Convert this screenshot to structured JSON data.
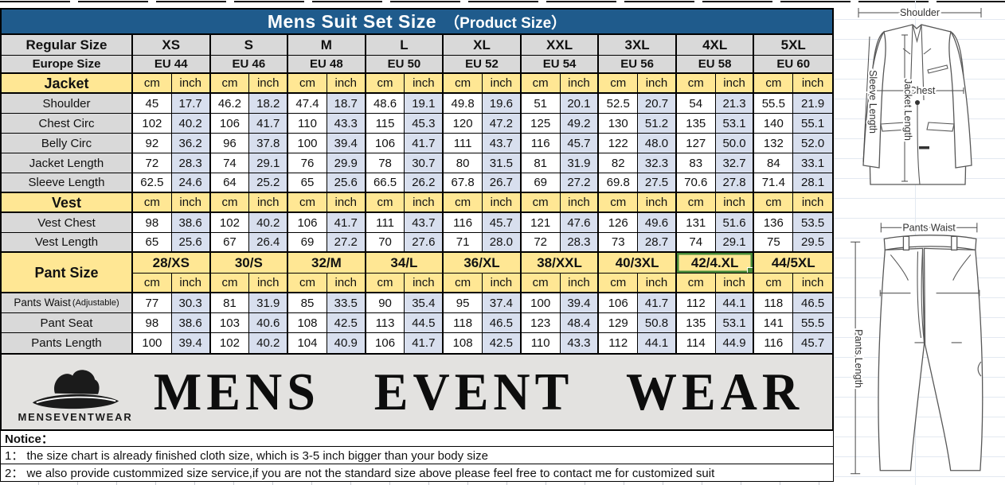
{
  "title": {
    "main": "Mens Suit Set Size",
    "sub": "（Product Size）"
  },
  "table": {
    "regular_size_label": "Regular Size",
    "europe_size_label": "Europe Size",
    "unit_cm": "cm",
    "unit_inch": "inch",
    "sizes": [
      "XS",
      "S",
      "M",
      "L",
      "XL",
      "XXL",
      "3XL",
      "4XL",
      "5XL"
    ],
    "europe_sizes": [
      "EU 44",
      "EU 46",
      "EU 48",
      "EU 50",
      "EU 52",
      "EU 54",
      "EU 56",
      "EU 58",
      "EU 60"
    ],
    "jacket": {
      "label": "Jacket",
      "rows": [
        {
          "label": "Shoulder",
          "cm": [
            "45",
            "46.2",
            "47.4",
            "48.6",
            "49.8",
            "51",
            "52.5",
            "54",
            "55.5"
          ],
          "inch": [
            "17.7",
            "18.2",
            "18.7",
            "19.1",
            "19.6",
            "20.1",
            "20.7",
            "21.3",
            "21.9"
          ]
        },
        {
          "label": "Chest Circ",
          "cm": [
            "102",
            "106",
            "110",
            "115",
            "120",
            "125",
            "130",
            "135",
            "140"
          ],
          "inch": [
            "40.2",
            "41.7",
            "43.3",
            "45.3",
            "47.2",
            "49.2",
            "51.2",
            "53.1",
            "55.1"
          ]
        },
        {
          "label": "Belly Circ",
          "cm": [
            "92",
            "96",
            "100",
            "106",
            "111",
            "116",
            "122",
            "127",
            "132"
          ],
          "inch": [
            "36.2",
            "37.8",
            "39.4",
            "41.7",
            "43.7",
            "45.7",
            "48.0",
            "50.0",
            "52.0"
          ]
        },
        {
          "label": "Jacket Length",
          "cm": [
            "72",
            "74",
            "76",
            "78",
            "80",
            "81",
            "82",
            "83",
            "84"
          ],
          "inch": [
            "28.3",
            "29.1",
            "29.9",
            "30.7",
            "31.5",
            "31.9",
            "32.3",
            "32.7",
            "33.1"
          ]
        },
        {
          "label": "Sleeve Length",
          "cm": [
            "62.5",
            "64",
            "65",
            "66.5",
            "67.8",
            "69",
            "69.8",
            "70.6",
            "71.4"
          ],
          "inch": [
            "24.6",
            "25.2",
            "25.6",
            "26.2",
            "26.7",
            "27.2",
            "27.5",
            "27.8",
            "28.1"
          ]
        }
      ]
    },
    "vest": {
      "label": "Vest",
      "rows": [
        {
          "label": "Vest Chest",
          "cm": [
            "98",
            "102",
            "106",
            "111",
            "116",
            "121",
            "126",
            "131",
            "136"
          ],
          "inch": [
            "38.6",
            "40.2",
            "41.7",
            "43.7",
            "45.7",
            "47.6",
            "49.6",
            "51.6",
            "53.5"
          ]
        },
        {
          "label": "Vest Length",
          "cm": [
            "65",
            "67",
            "69",
            "70",
            "71",
            "72",
            "73",
            "74",
            "75"
          ],
          "inch": [
            "25.6",
            "26.4",
            "27.2",
            "27.6",
            "28.0",
            "28.3",
            "28.7",
            "29.1",
            "29.5"
          ]
        }
      ]
    },
    "pants": {
      "label": "Pant Size",
      "sizes": [
        "28/XS",
        "30/S",
        "32/M",
        "34/L",
        "36/XL",
        "38/XXL",
        "40/3XL",
        "42/4.XL",
        "44/5XL"
      ],
      "selected_size": "42/4.XL",
      "rows": [
        {
          "label": "Pants Waist",
          "note": "(Adjustable)",
          "cm": [
            "77",
            "81",
            "85",
            "90",
            "95",
            "100",
            "106",
            "112",
            "118"
          ],
          "inch": [
            "30.3",
            "31.9",
            "33.5",
            "35.4",
            "37.4",
            "39.4",
            "41.7",
            "44.1",
            "46.5"
          ]
        },
        {
          "label": "Pant Seat",
          "cm": [
            "98",
            "103",
            "108",
            "113",
            "118",
            "123",
            "129",
            "135",
            "141"
          ],
          "inch": [
            "38.6",
            "40.6",
            "42.5",
            "44.5",
            "46.5",
            "48.4",
            "50.8",
            "53.1",
            "55.5"
          ]
        },
        {
          "label": "Pants Length",
          "cm": [
            "100",
            "102",
            "104",
            "106",
            "108",
            "110",
            "112",
            "114",
            "116"
          ],
          "inch": [
            "39.4",
            "40.2",
            "40.9",
            "41.7",
            "42.5",
            "43.3",
            "44.1",
            "44.9",
            "45.7"
          ]
        }
      ]
    }
  },
  "logo": {
    "brand": "MENSEVENTWEAR",
    "wordmark": "MENS EVENT WEAR"
  },
  "notice": {
    "label": "Notice：",
    "lines": [
      "1：  the size chart is already finished cloth size, which is 3-5 inch bigger than your body size",
      "2：  we also provide custommized size service,if you are not the standard size above please feel free to contact me for customized suit"
    ]
  },
  "diagrams": {
    "jacket_labels": {
      "shoulder": "Shoulder",
      "chest": "Chest",
      "jacket_length": "Jacket Length",
      "sleeve_length": "Sleeve Length"
    },
    "pants_labels": {
      "waist": "Pants Waist",
      "length": "Pants Length"
    }
  },
  "colors": {
    "title_bar": "#1F5B8C",
    "header_gray": "#D9D9D9",
    "section_yellow": "#FFE794",
    "inch_blue": "#D8DFEE",
    "selection_green": "#468A38",
    "logo_bg": "#E3E2E0"
  }
}
